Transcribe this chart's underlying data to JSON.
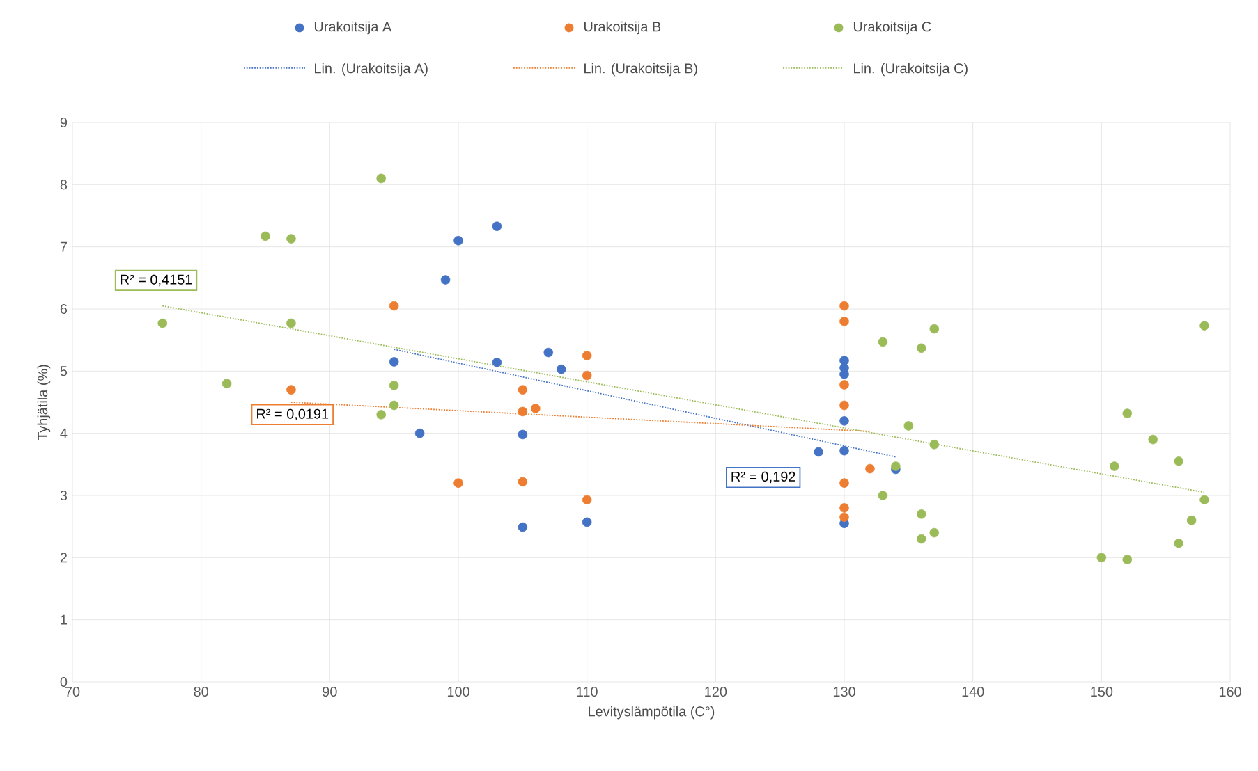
{
  "chart_data": {
    "type": "scatter",
    "xlabel": "Levityslämpötila (C°)",
    "ylabel": "Tyhjätila (%)",
    "xlim": [
      70,
      160
    ],
    "xticks": [
      70,
      80,
      90,
      100,
      110,
      120,
      130,
      140,
      150,
      160
    ],
    "ylim": [
      0,
      9
    ],
    "yticks": [
      0,
      1,
      2,
      3,
      4,
      5,
      6,
      7,
      8,
      9
    ],
    "grid": true,
    "legend": "top",
    "marker": "circle",
    "series": [
      {
        "name": "Urakoitsija A",
        "color": "#4472c4",
        "x": [
          95,
          97,
          99,
          100,
          103,
          103,
          105,
          105,
          107,
          108,
          110,
          128,
          130,
          130,
          130,
          130,
          130,
          130,
          134
        ],
        "values": [
          5.15,
          4.0,
          6.47,
          7.1,
          7.33,
          5.14,
          3.98,
          2.49,
          5.3,
          5.03,
          2.57,
          3.7,
          5.17,
          5.05,
          4.95,
          4.2,
          3.72,
          2.55,
          3.42
        ]
      },
      {
        "name": "Urakoitsija B",
        "color": "#ed7d31",
        "x": [
          87,
          95,
          100,
          105,
          105,
          105,
          106,
          110,
          110,
          110,
          130,
          130,
          130,
          130,
          130,
          130,
          130,
          132
        ],
        "values": [
          4.7,
          6.05,
          3.2,
          4.7,
          4.35,
          3.22,
          4.4,
          5.25,
          4.93,
          2.93,
          6.05,
          5.8,
          4.78,
          4.45,
          3.2,
          2.8,
          2.65,
          3.43
        ]
      },
      {
        "name": "Urakoitsija C",
        "color": "#9bbb59",
        "x": [
          77,
          82,
          85,
          87,
          87,
          94,
          94,
          95,
          95,
          133,
          133,
          134,
          135,
          136,
          136,
          136,
          137,
          137,
          137,
          150,
          151,
          152,
          152,
          154,
          156,
          156,
          157,
          158,
          158
        ],
        "values": [
          5.77,
          4.8,
          7.17,
          7.13,
          5.77,
          8.1,
          4.3,
          4.77,
          4.45,
          5.47,
          3.0,
          3.47,
          4.12,
          5.37,
          2.7,
          2.3,
          5.68,
          3.82,
          2.4,
          2.0,
          3.47,
          4.32,
          1.97,
          3.9,
          3.55,
          2.23,
          2.6,
          5.73,
          2.93
        ]
      },
      {
        "name": "Lin. (Urakoitsija A)",
        "type": "line",
        "line_style": "dotted",
        "marker": "none",
        "color": "#4472c4",
        "x": [
          95,
          134
        ],
        "values": [
          5.35,
          3.62
        ]
      },
      {
        "name": "Lin. (Urakoitsija B)",
        "type": "line",
        "line_style": "dotted",
        "marker": "none",
        "color": "#ed7d31",
        "x": [
          87,
          132
        ],
        "values": [
          4.5,
          4.03
        ]
      },
      {
        "name": "Lin. (Urakoitsija C)",
        "type": "line",
        "line_style": "dotted",
        "marker": "none",
        "color": "#9bbb59",
        "x": [
          77,
          158
        ],
        "values": [
          6.05,
          3.05
        ]
      }
    ],
    "annotations": [
      "R² = 0,192",
      "R² = 0,0191",
      "R² = 0,4151"
    ]
  }
}
